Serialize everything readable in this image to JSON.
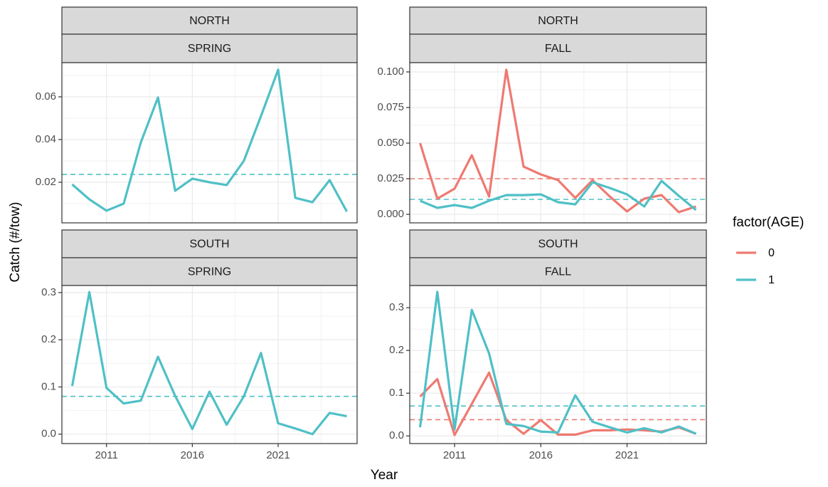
{
  "x_label": "Year",
  "y_label": "Catch (#/tow)",
  "legend_title": "factor(AGE)",
  "chart_data": [
    {
      "type": "line",
      "facet": [
        "NORTH",
        "SPRING"
      ],
      "x": [
        2009,
        2010,
        2011,
        2012,
        2013,
        2014,
        2015,
        2016,
        2017,
        2018,
        2019,
        2020,
        2021,
        2022,
        2023,
        2024,
        2025
      ],
      "xlim": [
        2008.4,
        2025.6
      ],
      "xticks": [
        2011,
        2016,
        2021
      ],
      "ylim": [
        0.001,
        0.076
      ],
      "yticks": [
        0.02,
        0.04,
        0.06
      ],
      "series": [
        {
          "name": "1",
          "color": "#4FC0C6",
          "reference": 0.0237,
          "values": [
            0.019,
            0.012,
            0.0067,
            0.01,
            0.0387,
            0.0597,
            0.016,
            0.0217,
            0.02,
            0.0187,
            0.03,
            0.051,
            0.0727,
            0.0127,
            0.0107,
            0.021,
            0.0063
          ]
        }
      ]
    },
    {
      "type": "line",
      "facet": [
        "NORTH",
        "FALL"
      ],
      "x": [
        2009,
        2010,
        2011,
        2012,
        2013,
        2014,
        2015,
        2016,
        2017,
        2018,
        2019,
        2020,
        2021,
        2022,
        2023,
        2024,
        2025
      ],
      "xlim": [
        2008.4,
        2025.6
      ],
      "xticks": [
        2011,
        2016,
        2021
      ],
      "ylim": [
        -0.006,
        0.1065
      ],
      "yticks": [
        {
          "value": 0,
          "label": "0.000"
        },
        {
          "value": 0.025,
          "label": "0.025"
        },
        {
          "value": 0.05,
          "label": "0.050"
        },
        {
          "value": 0.075,
          "label": "0.075"
        },
        {
          "value": 0.1,
          "label": "0.100"
        }
      ],
      "series": [
        {
          "name": "0",
          "color": "#EE7A72",
          "reference": 0.025,
          "values": [
            0.05,
            0.011,
            0.018,
            0.0415,
            0.0125,
            0.1015,
            0.0335,
            0.028,
            0.024,
            0.0115,
            0.024,
            0.0125,
            0.002,
            0.011,
            0.0135,
            0.0015,
            0.0055
          ]
        },
        {
          "name": "1",
          "color": "#4FC0C6",
          "reference": 0.0105,
          "values": [
            0.0095,
            0.0045,
            0.0065,
            0.0045,
            0.0095,
            0.0135,
            0.0135,
            0.014,
            0.0085,
            0.007,
            0.0225,
            0.0185,
            0.014,
            0.0055,
            0.0235,
            0.013,
            0.003
          ]
        }
      ]
    },
    {
      "type": "line",
      "facet": [
        "SOUTH",
        "SPRING"
      ],
      "x": [
        2009,
        2010,
        2011,
        2012,
        2013,
        2014,
        2015,
        2016,
        2017,
        2018,
        2019,
        2020,
        2021,
        2022,
        2023,
        2024,
        2025
      ],
      "xlim": [
        2008.4,
        2025.6
      ],
      "xticks": [
        2011,
        2016,
        2021
      ],
      "ylim": [
        -0.02,
        0.315
      ],
      "yticks": [
        {
          "value": 0,
          "label": "0.0"
        },
        0.1,
        0.2,
        0.3
      ],
      "series": [
        {
          "name": "1",
          "color": "#4FC0C6",
          "reference": 0.08,
          "values": [
            0.102,
            0.301,
            0.098,
            0.065,
            0.071,
            0.164,
            0.081,
            0.011,
            0.09,
            0.02,
            0.08,
            0.172,
            0.023,
            0.012,
            0.0,
            0.045,
            0.038
          ]
        }
      ]
    },
    {
      "type": "line",
      "facet": [
        "SOUTH",
        "FALL"
      ],
      "x": [
        2009,
        2010,
        2011,
        2012,
        2013,
        2014,
        2015,
        2016,
        2017,
        2018,
        2019,
        2020,
        2021,
        2022,
        2023,
        2024,
        2025
      ],
      "xlim": [
        2008.4,
        2025.6
      ],
      "xticks": [
        2011,
        2016,
        2021
      ],
      "ylim": [
        -0.018,
        0.352
      ],
      "yticks": [
        {
          "value": 0,
          "label": "0.0"
        },
        0.1,
        0.2,
        0.3
      ],
      "series": [
        {
          "name": "0",
          "color": "#EE7A72",
          "reference": 0.038,
          "values": [
            0.092,
            0.133,
            0.002,
            0.075,
            0.148,
            0.037,
            0.005,
            0.037,
            0.003,
            0.003,
            0.013,
            0.013,
            0.015,
            0.013,
            0.01,
            0.02,
            0.005
          ]
        },
        {
          "name": "1",
          "color": "#4FC0C6",
          "reference": 0.07,
          "values": [
            0.02,
            0.337,
            0.015,
            0.295,
            0.193,
            0.028,
            0.023,
            0.01,
            0.008,
            0.095,
            0.033,
            0.02,
            0.008,
            0.018,
            0.008,
            0.022,
            0.005
          ]
        }
      ]
    }
  ]
}
